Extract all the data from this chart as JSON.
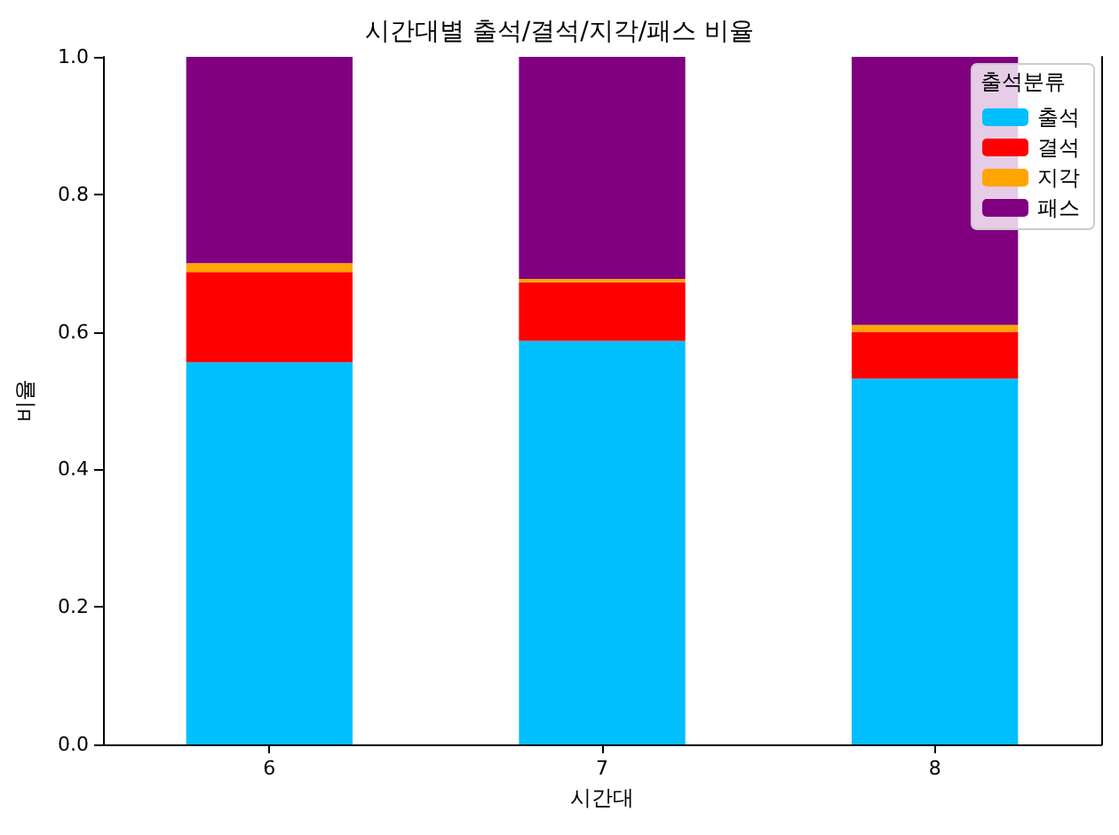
{
  "chart_data": {
    "type": "bar",
    "stacked": true,
    "title": "시간대별 출석/결석/지각/패스 비율",
    "xlabel": "시간대",
    "ylabel": "비율",
    "legend_title": "출석분류",
    "legend": "top right",
    "grid": false,
    "categories": [
      "6",
      "7",
      "8"
    ],
    "ylim": [
      0,
      1
    ],
    "yticks": [
      {
        "value": 0,
        "label": "0.0"
      },
      {
        "value": 0.2,
        "label": "0.2"
      },
      {
        "value": 0.4,
        "label": "0.4"
      },
      {
        "value": 0.6,
        "label": "0.6"
      },
      {
        "value": 0.8,
        "label": "0.8"
      },
      {
        "value": 1,
        "label": "1.0"
      }
    ],
    "series": [
      {
        "name": "출석",
        "color": "#00bfff",
        "values": [
          0.556,
          0.587,
          0.532
        ]
      },
      {
        "name": "결석",
        "color": "#ff0000",
        "values": [
          0.131,
          0.085,
          0.068
        ]
      },
      {
        "name": "지각",
        "color": "#ffa500",
        "values": [
          0.013,
          0.005,
          0.01
        ]
      },
      {
        "name": "패스",
        "color": "#800080",
        "values": [
          0.3,
          0.323,
          0.39
        ]
      }
    ]
  }
}
